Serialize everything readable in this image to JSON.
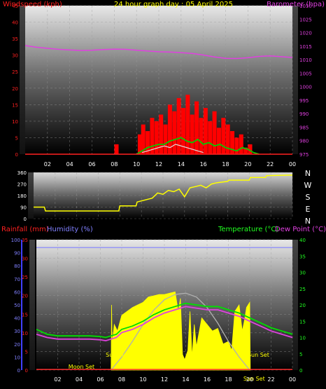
{
  "chart_data": [
    {
      "type": "line",
      "title": "24 hour graph day : 05 April 2025",
      "ylabel_left": "Windspeed (kph)",
      "ylabel_right": "Barometer (hpa)",
      "x_ticks": [
        "02",
        "04",
        "06",
        "08",
        "10",
        "12",
        "14",
        "16",
        "18",
        "20",
        "22",
        "00"
      ],
      "y_left_ticks": [
        0,
        5,
        10,
        15,
        20,
        25,
        30,
        35,
        40,
        45
      ],
      "y_right_ticks": [
        975,
        980,
        985,
        990,
        995,
        1000,
        1005,
        1010,
        1015,
        1020,
        1025,
        1030
      ],
      "ylim_left": [
        0,
        45
      ],
      "ylim_right": [
        975,
        1030
      ],
      "series": [
        {
          "type": "line",
          "axis": "right",
          "x": [
            0,
            1,
            2,
            3,
            4,
            5,
            6,
            7,
            8,
            9,
            10,
            11,
            12,
            13,
            14,
            15,
            16,
            17,
            18,
            19,
            20,
            21,
            22,
            23,
            24
          ],
          "values": [
            1015.2,
            1014.6,
            1014.2,
            1013.8,
            1013.6,
            1013.4,
            1013.5,
            1013.7,
            1013.9,
            1013.8,
            1013.5,
            1013.2,
            1012.9,
            1012.8,
            1012.6,
            1012.3,
            1011.7,
            1011.0,
            1010.5,
            1010.4,
            1010.7,
            1011.2,
            1011.4,
            1011.1,
            1010.8
          ],
          "color": "#e040e0"
        },
        {
          "type": "bar",
          "axis": "left",
          "x": [
            8.2,
            10.3,
            10.6,
            11.0,
            11.4,
            11.8,
            12.2,
            12.6,
            13.0,
            13.4,
            13.8,
            14.2,
            14.6,
            15.0,
            15.4,
            15.8,
            16.2,
            16.6,
            17.0,
            17.4,
            17.8,
            18.2,
            18.6,
            19.0,
            19.4,
            19.8,
            20.2
          ],
          "values": [
            3,
            6,
            9,
            7,
            11,
            10,
            12,
            9,
            15,
            13,
            17,
            14,
            18,
            12,
            16,
            11,
            14,
            10,
            13,
            8,
            11,
            9,
            7,
            5,
            6,
            2,
            3
          ],
          "color": "#ff0000"
        },
        {
          "type": "line",
          "axis": "left",
          "x": [
            10,
            10.5,
            11,
            11.5,
            12,
            12.5,
            13,
            13.5,
            14,
            14.5,
            15,
            15.5,
            16,
            16.5,
            17,
            17.5,
            18,
            18.5,
            19,
            19.5,
            20,
            20.5,
            21
          ],
          "values": [
            0,
            1,
            2,
            2.5,
            3,
            3,
            4,
            4.5,
            5,
            4,
            3.5,
            4.5,
            3,
            3.5,
            2.5,
            3,
            2,
            1.5,
            1,
            2,
            1.5,
            0.5,
            0
          ],
          "color": "#00d000"
        },
        {
          "type": "line",
          "axis": "left",
          "x": [
            10.5,
            11,
            11.5,
            12,
            12.5,
            13,
            13.5,
            14,
            14.5,
            15,
            15.5,
            16
          ],
          "values": [
            0.5,
            1,
            1.5,
            2,
            2.5,
            2,
            3,
            2.5,
            2,
            1.5,
            1,
            0.5
          ],
          "color": "#e0e0e0"
        }
      ]
    },
    {
      "type": "line",
      "ylabel_right": [
        "N",
        "W",
        "S",
        "E",
        "N"
      ],
      "y_left_ticks": [
        0,
        90,
        180,
        270,
        360
      ],
      "ylim_left": [
        0,
        360
      ],
      "series": [
        {
          "type": "line",
          "x": [
            0,
            1,
            1.1,
            6,
            7.9,
            8,
            9.5,
            9.6,
            11,
            11.5,
            12,
            12.5,
            13,
            13.5,
            14,
            14.5,
            15,
            15.5,
            16,
            16.5,
            17,
            18,
            18.1,
            20,
            20.1,
            21.5,
            21.6,
            24
          ],
          "values": [
            90,
            90,
            60,
            60,
            60,
            100,
            100,
            130,
            160,
            200,
            190,
            220,
            210,
            230,
            170,
            240,
            250,
            260,
            240,
            270,
            280,
            290,
            300,
            300,
            320,
            320,
            335,
            340
          ],
          "color": "#ffff00"
        }
      ]
    },
    {
      "type": "line",
      "ylabel_left_a": "Rainfall (mm)",
      "ylabel_left_b": "Humidity (%)",
      "ylabel_right_a": "Temperature (°C)",
      "ylabel_right_b": "Dew Point (°C)",
      "humidity_ticks": [
        0,
        10,
        20,
        30,
        40,
        50,
        60,
        70,
        80,
        90,
        100
      ],
      "rain_ticks": [
        0,
        5,
        10,
        15,
        20,
        25,
        30,
        35
      ],
      "temp_ticks": [
        0,
        5,
        10,
        15,
        20,
        25,
        30,
        35,
        40
      ],
      "ylim_humidity": [
        0,
        100
      ],
      "ylim_rain": [
        0,
        35
      ],
      "ylim_temp": [
        0,
        40
      ],
      "annotations": [
        "Moon Set",
        "Sun Rise",
        "Sun Set",
        "Sun Set"
      ],
      "series": [
        {
          "type": "line",
          "axis": "humidity",
          "x": [
            0,
            24
          ],
          "values": [
            94,
            94
          ],
          "color": "#8080ff"
        },
        {
          "type": "area",
          "axis": "humidity",
          "x": [
            7,
            7.05,
            7.1,
            7.3,
            7.6,
            8,
            8.5,
            9,
            9.5,
            10,
            10.5,
            11,
            11.5,
            12,
            12.5,
            13,
            13.3,
            13.5,
            13.7,
            13.9,
            14.2,
            14.4,
            14.6,
            14.8,
            15,
            15.5,
            16,
            16.5,
            17,
            17.5,
            18,
            18.3,
            18.6,
            19,
            19.3,
            19.5,
            19.7,
            20,
            20.05
          ],
          "values": [
            0,
            50,
            20,
            35,
            30,
            42,
            45,
            48,
            50,
            52,
            56,
            57,
            58,
            58,
            59,
            60,
            45,
            55,
            12,
            8,
            15,
            45,
            10,
            35,
            18,
            40,
            35,
            30,
            32,
            20,
            22,
            15,
            45,
            50,
            30,
            38,
            48,
            52,
            0
          ],
          "color": "#ffff00"
        },
        {
          "type": "line",
          "axis": "temp",
          "x": [
            0,
            1,
            2,
            3,
            4,
            5,
            6,
            6.5,
            7,
            7.5,
            8,
            9,
            10,
            11,
            12,
            13,
            14,
            15,
            16,
            17,
            18,
            19,
            20,
            21,
            22,
            23,
            24
          ],
          "values": [
            12.5,
            11,
            10.5,
            10.5,
            10.5,
            10.5,
            10.3,
            10,
            10.5,
            11,
            12.5,
            13.5,
            15,
            17,
            18.5,
            19.5,
            20.5,
            20,
            19.5,
            19.5,
            18.5,
            17.5,
            16,
            14.5,
            13,
            12,
            11
          ],
          "color": "#00e000"
        },
        {
          "type": "line",
          "axis": "temp",
          "x": [
            0,
            1,
            2,
            3,
            4,
            5,
            6,
            6.5,
            7,
            7.5,
            8,
            9,
            10,
            11,
            12,
            13,
            14,
            15,
            16,
            17,
            18,
            19,
            20,
            21,
            22,
            23,
            24
          ],
          "values": [
            11,
            10,
            9.5,
            9.5,
            9.5,
            9.5,
            9.3,
            9,
            9.5,
            10,
            11.5,
            12.5,
            14,
            16,
            17.5,
            18.5,
            19.5,
            19,
            18.5,
            18.5,
            17.5,
            16.5,
            15,
            13.5,
            12,
            11,
            10
          ],
          "color": "#e040e0"
        },
        {
          "type": "line",
          "axis": "humidity",
          "x": [
            7,
            8,
            9,
            10,
            11,
            12,
            13,
            14,
            15,
            16,
            17,
            18,
            19,
            20
          ],
          "values": [
            0,
            10,
            22,
            35,
            46,
            54,
            58,
            59,
            56,
            48,
            36,
            22,
            10,
            0
          ],
          "color": "#b0b0b0"
        },
        {
          "type": "line",
          "axis": "humidity",
          "x": [
            0,
            24
          ],
          "values": [
            0.5,
            0.5
          ],
          "color": "#ff3030"
        }
      ]
    }
  ]
}
